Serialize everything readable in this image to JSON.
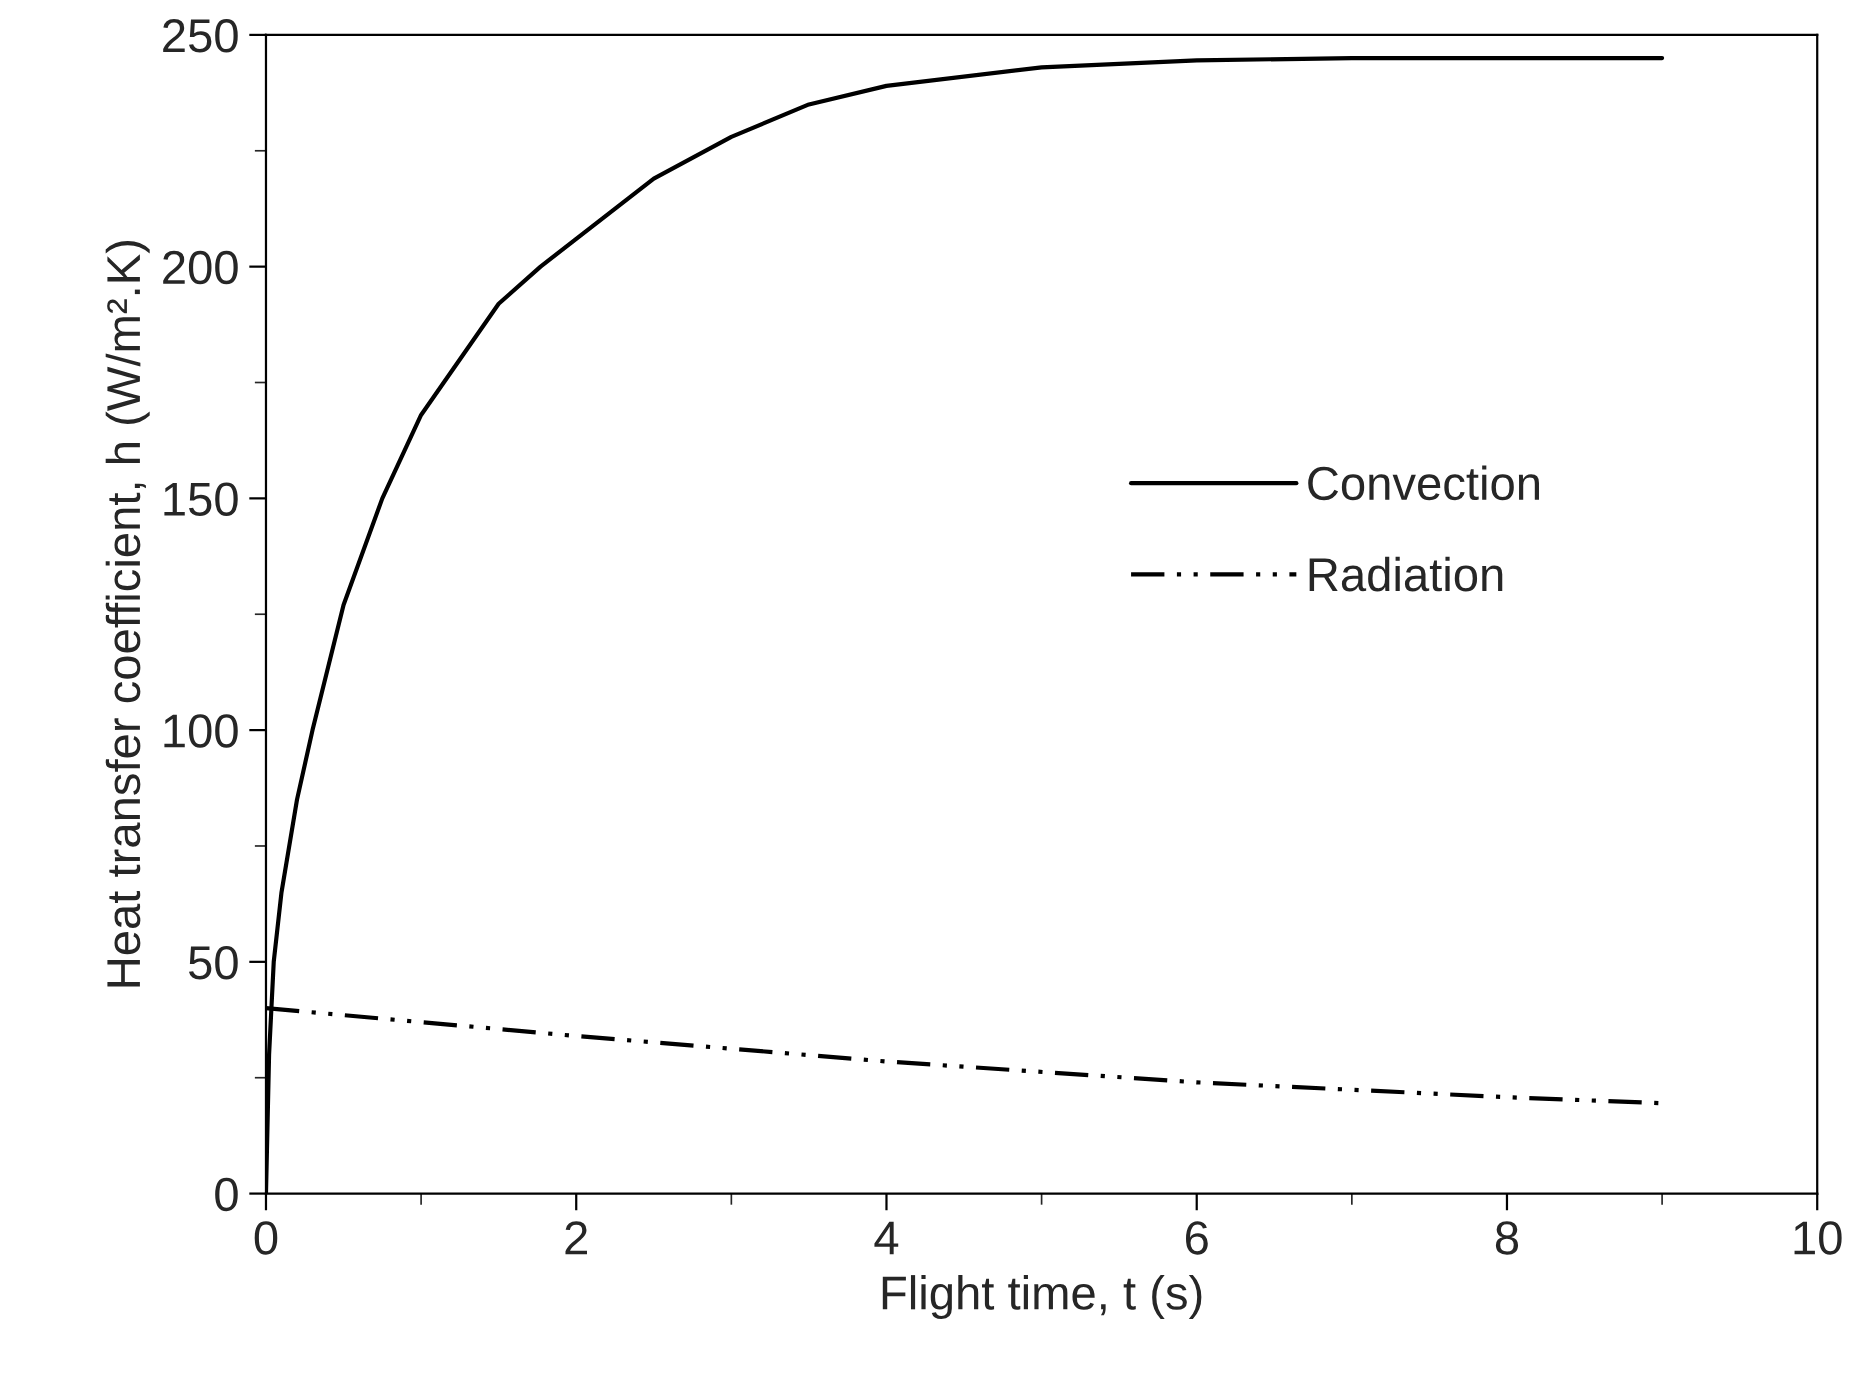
{
  "chart_data": {
    "type": "line",
    "xlabel": "Flight time, t (s)",
    "ylabel": "Heat transfer coefficient, h (W/m².K)",
    "xlim": [
      0,
      10
    ],
    "ylim": [
      0,
      250
    ],
    "xticks": [
      0,
      2,
      4,
      6,
      8,
      10
    ],
    "yticks": [
      0,
      50,
      100,
      150,
      200,
      250
    ],
    "grid": false,
    "legend": "right",
    "marker": "none",
    "series": [
      {
        "name": "Convection",
        "color": "#000000",
        "line_style": "solid",
        "x": [
          0,
          0.02,
          0.05,
          0.1,
          0.2,
          0.3,
          0.5,
          0.75,
          1,
          1.5,
          1.77,
          2,
          2.5,
          3,
          3.5,
          4,
          5,
          6,
          7,
          8,
          9
        ],
        "values": [
          0,
          30,
          50,
          65,
          85,
          100,
          127,
          150,
          168,
          192,
          200,
          206,
          219,
          228,
          235,
          239,
          243,
          244.5,
          245,
          245,
          245
        ]
      },
      {
        "name": "Radiation",
        "color": "#000000",
        "line_style": "dashdotdot",
        "x": [
          0,
          2,
          4,
          6,
          8,
          9
        ],
        "values": [
          40,
          34,
          28.5,
          24,
          20.8,
          19.5
        ]
      }
    ]
  }
}
